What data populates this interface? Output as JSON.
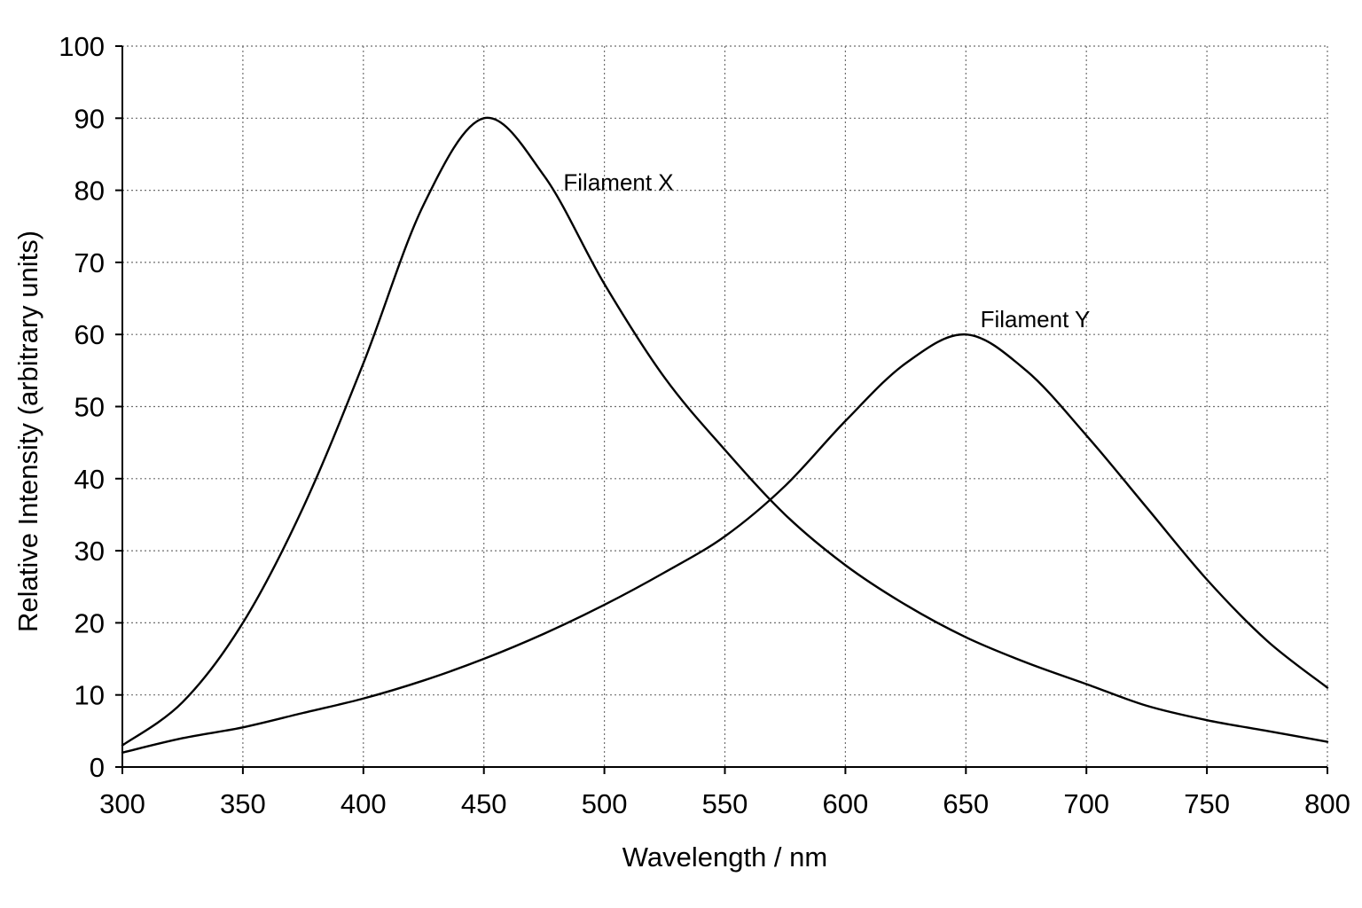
{
  "chart_data": {
    "type": "line",
    "title": "",
    "xlabel": "Wavelength / nm",
    "ylabel": "Relative Intensity (arbitrary units)",
    "xlim": [
      300,
      800
    ],
    "ylim": [
      0,
      100
    ],
    "xticks": [
      300,
      350,
      400,
      450,
      500,
      550,
      600,
      650,
      700,
      750,
      800
    ],
    "yticks": [
      0,
      10,
      20,
      30,
      40,
      50,
      60,
      70,
      80,
      90,
      100
    ],
    "grid": true,
    "grid_style": "dotted",
    "line_color": "#000000",
    "series": [
      {
        "name": "Filament X",
        "x": [
          300,
          325,
          350,
          375,
          400,
          425,
          450,
          475,
          500,
          525,
          550,
          575,
          600,
          625,
          650,
          675,
          700,
          725,
          750,
          775,
          800
        ],
        "y": [
          3,
          9,
          20,
          36,
          56,
          78,
          90,
          82,
          67,
          54,
          44,
          35,
          28,
          22.5,
          18,
          14.5,
          11.5,
          8.5,
          6.5,
          5,
          3.5
        ]
      },
      {
        "name": "Filament Y",
        "x": [
          300,
          325,
          350,
          375,
          400,
          425,
          450,
          475,
          500,
          525,
          550,
          575,
          600,
          625,
          650,
          675,
          700,
          725,
          750,
          775,
          800
        ],
        "y": [
          2,
          4,
          5.5,
          7.5,
          9.5,
          12,
          15,
          18.5,
          22.5,
          27,
          32,
          39,
          48,
          56,
          60,
          55,
          46,
          36,
          26,
          17.5,
          11
        ]
      }
    ],
    "annotations": [
      {
        "text": "Filament X",
        "x": 483,
        "y": 80
      },
      {
        "text": "Filament Y",
        "x": 656,
        "y": 61
      }
    ]
  }
}
